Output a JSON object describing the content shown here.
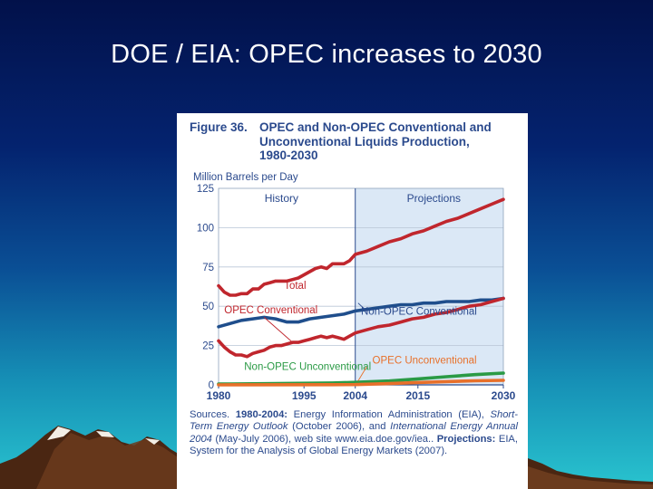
{
  "slide": {
    "title": "DOE / EIA: OPEC increases to 2030"
  },
  "figure": {
    "number": "Figure 36.",
    "title_lines": [
      "OPEC and Non-OPEC Conventional and",
      "Unconventional Liquids Production,",
      "1980-2030"
    ]
  },
  "sources": {
    "prefix": "Sources. ",
    "hist_label": "1980-2004:",
    "hist_text_1": " Energy Information Administration (EIA), ",
    "hist_pub": "Short-Term Energy Outlook",
    "hist_text_2": " (October 2006), and ",
    "ieo_pub": "International Energy Annual 2004",
    "hist_text_3": " (May-July 2006), web site www.eia.doe.gov/iea.. ",
    "proj_label": "Projections:",
    "proj_text": " EIA, System for the Analysis of Global Energy Markets (2007)."
  },
  "colors": {
    "background_top": "#02114a",
    "background_bottom": "#29c4cf",
    "figure_text": "#2b4a8d",
    "total": "#c0262d",
    "non_opec_conventional": "#1f4e8c",
    "opec_conventional": "#c0262d",
    "non_opec_unconventional": "#2a9a45",
    "opec_unconventional": "#e8702a",
    "projection_shade": "#dbe8f6"
  },
  "chart_data": {
    "type": "line",
    "ylabel": "Million Barrels per Day",
    "xlabel": "",
    "ylim": [
      0,
      125
    ],
    "xlim": [
      1980,
      2030
    ],
    "x_ticks": [
      "1980",
      "1995",
      "2004",
      "2015",
      "2030"
    ],
    "y_ticks": [
      "0",
      "25",
      "50",
      "75",
      "100",
      "125"
    ],
    "grid": true,
    "region_labels": [
      "History",
      "Projections"
    ],
    "projection_start": 2004,
    "series": [
      {
        "name": "Total",
        "x": [
          1980,
          1981,
          1982,
          1983,
          1984,
          1985,
          1986,
          1987,
          1988,
          1989,
          1990,
          1991,
          1992,
          1993,
          1994,
          1995,
          1996,
          1997,
          1998,
          1999,
          2000,
          2001,
          2002,
          2003,
          2004,
          2006,
          2008,
          2010,
          2012,
          2014,
          2016,
          2018,
          2020,
          2022,
          2024,
          2026,
          2028,
          2030
        ],
        "y": [
          63,
          59,
          57,
          57,
          58,
          58,
          61,
          61,
          64,
          65,
          66,
          66,
          66,
          67,
          68,
          70,
          72,
          74,
          75,
          74,
          77,
          77,
          77,
          79,
          83,
          85,
          88,
          91,
          93,
          96,
          98,
          101,
          104,
          106,
          109,
          112,
          115,
          118
        ]
      },
      {
        "name": "Non-OPEC Conventional",
        "x": [
          1980,
          1982,
          1984,
          1986,
          1988,
          1990,
          1992,
          1994,
          1996,
          1998,
          2000,
          2002,
          2004,
          2006,
          2008,
          2010,
          2012,
          2014,
          2016,
          2018,
          2020,
          2022,
          2024,
          2026,
          2028,
          2030
        ],
        "y": [
          37,
          39,
          41,
          42,
          43,
          42,
          40,
          40,
          42,
          43,
          44,
          45,
          47,
          48,
          49,
          50,
          51,
          51,
          52,
          52,
          53,
          53,
          53,
          54,
          54,
          55
        ]
      },
      {
        "name": "OPEC Conventional",
        "x": [
          1980,
          1981,
          1982,
          1983,
          1984,
          1985,
          1986,
          1987,
          1988,
          1989,
          1990,
          1991,
          1992,
          1993,
          1994,
          1995,
          1996,
          1997,
          1998,
          1999,
          2000,
          2001,
          2002,
          2003,
          2004,
          2006,
          2008,
          2010,
          2012,
          2014,
          2016,
          2018,
          2020,
          2022,
          2024,
          2026,
          2028,
          2030
        ],
        "y": [
          28,
          24,
          21,
          19,
          19,
          18,
          20,
          21,
          22,
          24,
          25,
          25,
          26,
          27,
          27,
          28,
          29,
          30,
          31,
          30,
          31,
          30,
          29,
          31,
          33,
          35,
          37,
          38,
          40,
          42,
          43,
          45,
          46,
          48,
          50,
          51,
          53,
          55
        ]
      },
      {
        "name": "Non-OPEC Unconventional",
        "x": [
          1980,
          1990,
          2000,
          2004,
          2010,
          2015,
          2020,
          2025,
          2030
        ],
        "y": [
          0.5,
          0.8,
          1.2,
          1.6,
          2.5,
          3.8,
          5.2,
          6.5,
          7.5
        ]
      },
      {
        "name": "OPEC Unconventional",
        "x": [
          1980,
          2000,
          2004,
          2010,
          2015,
          2020,
          2025,
          2030
        ],
        "y": [
          0,
          0.1,
          0.2,
          0.8,
          1.5,
          2.1,
          2.6,
          2.9
        ]
      }
    ],
    "annotations": [
      {
        "text": "Total",
        "series": "Total"
      },
      {
        "text": "Non-OPEC Conventional",
        "series": "Non-OPEC Conventional"
      },
      {
        "text": "OPEC Conventional",
        "series": "OPEC Conventional"
      },
      {
        "text": "Non-OPEC Unconventional",
        "series": "Non-OPEC Unconventional"
      },
      {
        "text": "OPEC Unconventional",
        "series": "OPEC Unconventional"
      }
    ]
  }
}
